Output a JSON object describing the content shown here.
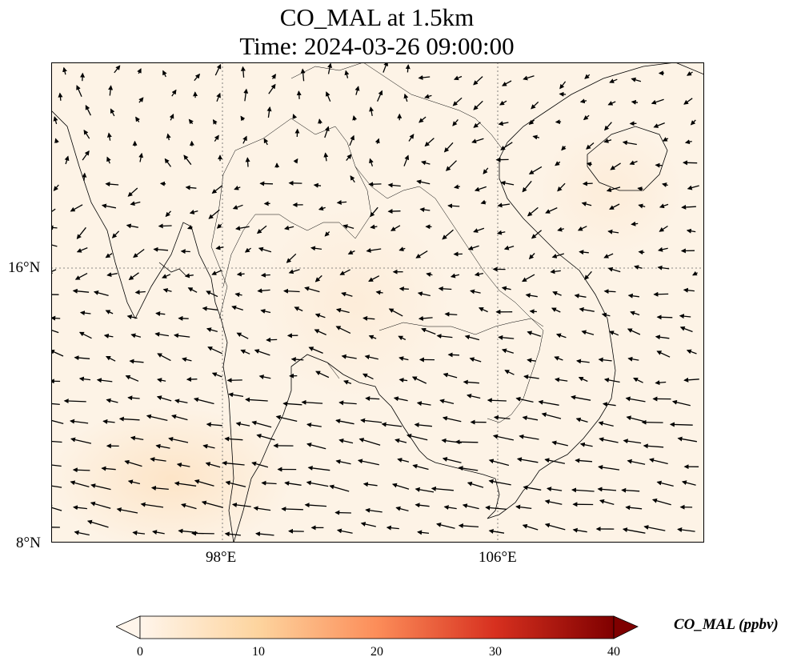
{
  "title_line1": "CO_MAL at 1.5km",
  "title_line2": "Time: 2024-03-26 09:00:00",
  "lat_labels": [
    "16°N",
    "8°N"
  ],
  "lon_labels": [
    "98°E",
    "106°E"
  ],
  "colorbar": {
    "label": "CO_MAL (ppbv)",
    "ticks": [
      "0",
      "10",
      "20",
      "30",
      "40"
    ],
    "range": [
      0,
      40
    ],
    "colors": [
      "#fff5eb",
      "#fdd49e",
      "#fc8d59",
      "#d7301f",
      "#7f0000"
    ]
  },
  "field_color": "#fdf3e6"
}
